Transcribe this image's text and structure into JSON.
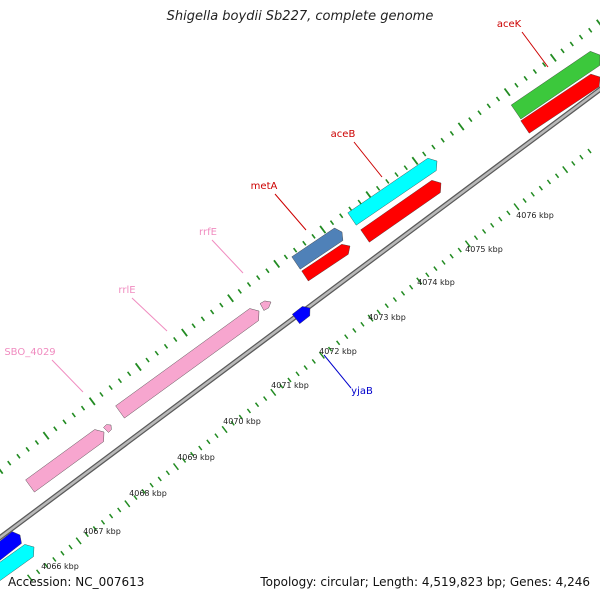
{
  "title": "Shigella boydii Sb227, complete genome",
  "accession_text": "Accession: NC_007613",
  "summary_text": "Topology: circular; Length: 4,519,823 bp; Genes: 4,246",
  "colors": {
    "backbone": "#8c8c8c",
    "ticks": "#228b22",
    "pink": "#f7a6cf",
    "red": "#ff0000",
    "cyan": "#00ffff",
    "green": "#3cc83c",
    "steelblue": "#4f81b8",
    "blue": "#0000ff",
    "label_red": "#cc0000",
    "label_pink": "#f08cc0",
    "label_blue": "#0000cc"
  },
  "scale_labels": [
    "4066 kbp",
    "4067 kbp",
    "4068 kbp",
    "4069 kbp",
    "4070 kbp",
    "4071 kbp",
    "4072 kbp",
    "4073 kbp",
    "4074 kbp",
    "4075 kbp",
    "4076 kbp"
  ],
  "gene_labels": {
    "aceK": "aceK",
    "aceB": "aceB",
    "metA": "metA",
    "rrfE": "rrfE",
    "rrlE": "rrlE",
    "SBO_4029": "SBO_4029",
    "yjaB": "yjaB"
  }
}
